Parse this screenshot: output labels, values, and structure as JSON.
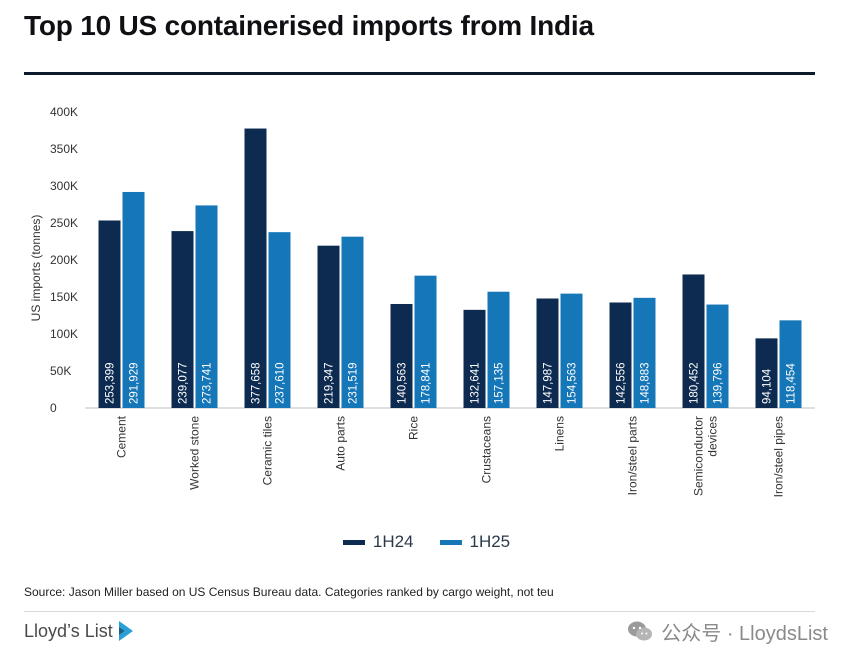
{
  "title": "Top 10 US containerised imports from India",
  "source": "Source: Jason Miller based on US Census Bureau data. Categories ranked by cargo weight, not teu",
  "brand": {
    "name": "Lloyd’s List"
  },
  "watermark": {
    "text": "公众号 · LloydsList"
  },
  "colors": {
    "h24": "#0d2b50",
    "h25": "#1576b8",
    "axis": "#bfbfbf",
    "text": "#333333"
  },
  "chart_data": {
    "type": "bar",
    "title": "Top 10 US containerised imports from India",
    "ylabel": "US imports (tonnes)",
    "xlabel": "",
    "ylim": [
      0,
      400000
    ],
    "yticks": [
      0,
      50000,
      100000,
      150000,
      200000,
      250000,
      300000,
      350000,
      400000
    ],
    "ytick_labels": [
      "0",
      "50K",
      "100K",
      "150K",
      "200K",
      "250K",
      "300K",
      "350K",
      "400K"
    ],
    "grid": false,
    "legend_position": "bottom",
    "categories": [
      [
        "Cement"
      ],
      [
        "Worked stone"
      ],
      [
        "Ceramic tiles"
      ],
      [
        "Auto parts"
      ],
      [
        "Rice"
      ],
      [
        "Crustaceans"
      ],
      [
        "Linens"
      ],
      [
        "Iron/steel parts"
      ],
      [
        "Semiconductor",
        "devices"
      ],
      [
        "Iron/steel pipes"
      ]
    ],
    "series": [
      {
        "name": "1H24",
        "values": [
          253399,
          239077,
          377658,
          219347,
          140563,
          132641,
          147987,
          142556,
          180452,
          94104
        ],
        "labels": [
          "253,399",
          "239,077",
          "377,658",
          "219,347",
          "140,563",
          "132,641",
          "147,987",
          "142,556",
          "180,452",
          "94,104"
        ]
      },
      {
        "name": "1H25",
        "values": [
          291929,
          273741,
          237610,
          231519,
          178841,
          157135,
          154563,
          148883,
          139796,
          118454
        ],
        "labels": [
          "291,929",
          "273,741",
          "237,610",
          "231,519",
          "178,841",
          "157,135",
          "154,563",
          "148,883",
          "139,796",
          "118,454"
        ]
      }
    ]
  }
}
